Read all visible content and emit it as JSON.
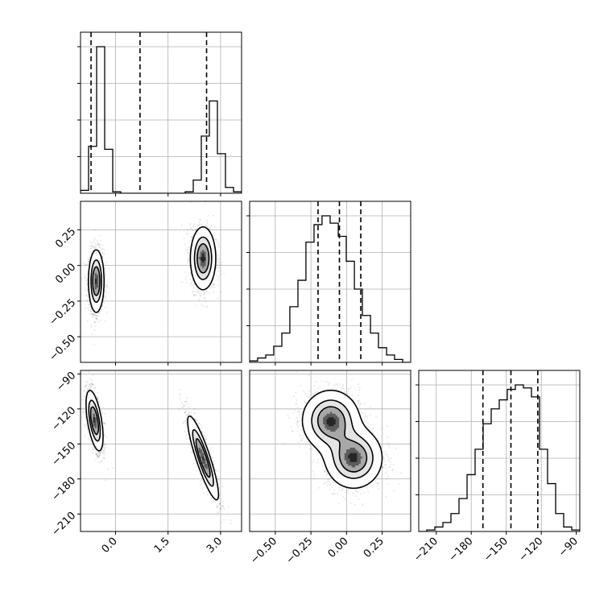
{
  "chart_data": {
    "type": "corner",
    "grid": true,
    "colors": {
      "scatter": "#000000",
      "contour_fill_max": "#1a1a1a",
      "contour_fill_min": "#f2f2f2",
      "grid": "#b0b0b0"
    },
    "params": [
      {
        "range": [
          -1.0,
          3.6
        ],
        "ticks": [
          0.0,
          1.5,
          3.0
        ],
        "tick_labels": [
          "0.0",
          "1.5",
          "3.0"
        ],
        "quantiles": [
          -0.7,
          0.7,
          2.6
        ],
        "hist": {
          "edges": [
            -1.0,
            -0.77,
            -0.54,
            -0.31,
            -0.08,
            0.15,
            0.38,
            0.61,
            0.84,
            1.07,
            1.3,
            1.53,
            1.76,
            1.99,
            2.22,
            2.45,
            2.68,
            2.91,
            3.14,
            3.37,
            3.6
          ],
          "counts": [
            2,
            32,
            100,
            30,
            1,
            0,
            0,
            0,
            0,
            0,
            0,
            0,
            0,
            1,
            9,
            39,
            63,
            27,
            4,
            1
          ]
        }
      },
      {
        "range": [
          -0.68,
          0.45
        ],
        "ticks": [
          -0.5,
          -0.25,
          0.0,
          0.25
        ],
        "tick_labels": [
          "−0.50",
          "−0.25",
          "0.00",
          "0.25"
        ],
        "quantiles": [
          -0.2,
          -0.05,
          0.1
        ],
        "hist": {
          "edges": [
            -0.68,
            -0.624,
            -0.567,
            -0.511,
            -0.454,
            -0.398,
            -0.341,
            -0.285,
            -0.228,
            -0.172,
            -0.115,
            -0.058,
            -0.002,
            0.055,
            0.111,
            0.168,
            0.224,
            0.281,
            0.337,
            0.394,
            0.45
          ],
          "counts": [
            1,
            3,
            5,
            11,
            20,
            38,
            56,
            82,
            94,
            100,
            95,
            86,
            69,
            50,
            32,
            20,
            10,
            5,
            2,
            0
          ]
        }
      },
      {
        "range": [
          -225,
          -87
        ],
        "ticks": [
          -210,
          -180,
          -150,
          -120,
          -90
        ],
        "tick_labels": [
          "−210",
          "−180",
          "−150",
          "−120",
          "−90"
        ],
        "quantiles": [
          -170,
          -146,
          -123
        ],
        "hist": {
          "edges": [
            -225,
            -218.1,
            -211.2,
            -204.3,
            -197.4,
            -190.5,
            -183.6,
            -176.7,
            -169.8,
            -162.9,
            -156.0,
            -149.1,
            -142.2,
            -135.3,
            -128.4,
            -121.5,
            -114.6,
            -107.7,
            -100.8,
            -93.9,
            -87.0
          ],
          "counts": [
            0,
            1,
            3,
            6,
            12,
            22,
            38,
            55,
            72,
            82,
            88,
            95,
            98,
            96,
            90,
            55,
            32,
            12,
            3,
            1
          ]
        }
      }
    ],
    "blobs": {
      "1_0": [
        {
          "cx": -0.55,
          "cy": -0.11,
          "sx": 0.11,
          "sy": 0.11,
          "rho": 0.0,
          "w": 0.5
        },
        {
          "cx": 2.5,
          "cy": 0.05,
          "sx": 0.18,
          "sy": 0.11,
          "rho": 0.0,
          "w": 0.5
        }
      ],
      "2_0": [
        {
          "cx": -0.6,
          "cy": -130,
          "sx": 0.12,
          "sy": 13,
          "rho": -0.55,
          "w": 0.5
        },
        {
          "cx": 2.5,
          "cy": -162,
          "sx": 0.22,
          "sy": 18,
          "rho": -0.88,
          "w": 0.5
        }
      ],
      "2_1": [
        {
          "cx": -0.11,
          "cy": -130,
          "sx": 0.1,
          "sy": 13,
          "rho": 0.0,
          "w": 0.5
        },
        {
          "cx": 0.05,
          "cy": -162,
          "sx": 0.1,
          "sy": 13,
          "rho": 0.0,
          "w": 0.5
        }
      ]
    }
  }
}
